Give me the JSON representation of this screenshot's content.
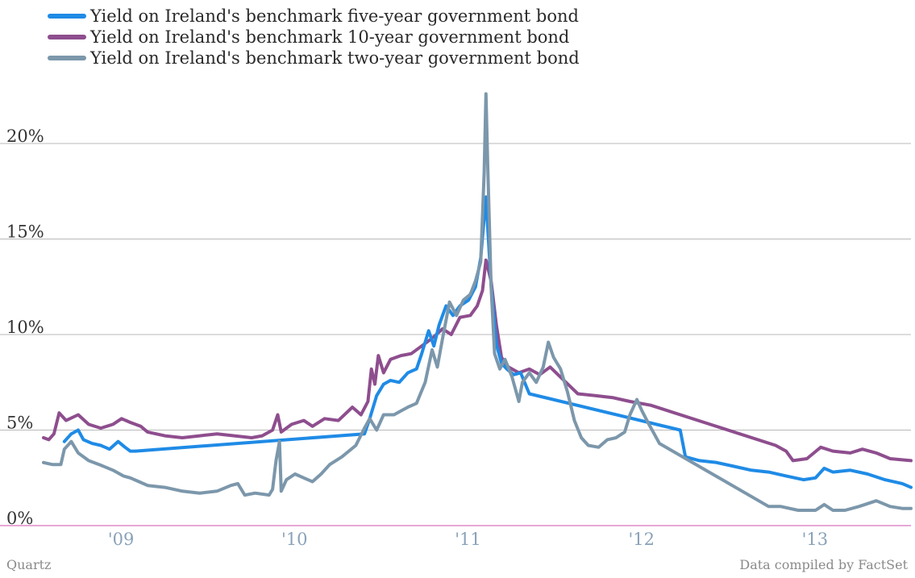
{
  "chart_data": {
    "type": "line",
    "y_unit": "%",
    "ylim": [
      0,
      23
    ],
    "xlim": [
      2008.5,
      2013.5
    ],
    "yticks": [
      {
        "value": 0,
        "label": "0%"
      },
      {
        "value": 5,
        "label": "5%"
      },
      {
        "value": 10,
        "label": "10%"
      },
      {
        "value": 15,
        "label": "15%"
      },
      {
        "value": 20,
        "label": "20%"
      }
    ],
    "xticks": [
      {
        "value": 2009,
        "label": "'09"
      },
      {
        "value": 2010,
        "label": "'10"
      },
      {
        "value": 2011,
        "label": "'11"
      },
      {
        "value": 2012,
        "label": "'12"
      },
      {
        "value": 2013,
        "label": "'13"
      }
    ],
    "grid": true,
    "legend_position": "top-left",
    "series": [
      {
        "name": "Yield on Ireland's benchmark five-year government bond",
        "color": "#1f8be6",
        "points": [
          [
            2008.62,
            4.4
          ],
          [
            2008.66,
            4.8
          ],
          [
            2008.7,
            5.0
          ],
          [
            2008.73,
            4.5
          ],
          [
            2008.78,
            4.3
          ],
          [
            2008.83,
            4.2
          ],
          [
            2008.88,
            4.0
          ],
          [
            2008.93,
            4.4
          ],
          [
            2008.97,
            4.1
          ],
          [
            2009.0,
            3.9
          ],
          [
            2009.03,
            3.9
          ],
          [
            2010.35,
            4.8
          ],
          [
            2010.38,
            5.6
          ],
          [
            2010.42,
            6.8
          ],
          [
            2010.46,
            7.4
          ],
          [
            2010.5,
            7.6
          ],
          [
            2010.55,
            7.5
          ],
          [
            2010.6,
            8.0
          ],
          [
            2010.65,
            8.2
          ],
          [
            2010.68,
            9.0
          ],
          [
            2010.72,
            10.2
          ],
          [
            2010.75,
            9.4
          ],
          [
            2010.78,
            10.5
          ],
          [
            2010.82,
            11.5
          ],
          [
            2010.86,
            11.0
          ],
          [
            2010.9,
            11.5
          ],
          [
            2010.95,
            11.8
          ],
          [
            2010.99,
            12.5
          ],
          [
            2011.02,
            14.0
          ],
          [
            2011.05,
            17.2
          ],
          [
            2011.08,
            12.6
          ],
          [
            2011.11,
            9.5
          ],
          [
            2011.14,
            8.5
          ],
          [
            2011.17,
            8.2
          ],
          [
            2011.21,
            7.9
          ],
          [
            2011.25,
            8.0
          ],
          [
            2011.3,
            6.9
          ],
          [
            2012.17,
            5.0
          ],
          [
            2012.2,
            3.6
          ],
          [
            2012.28,
            3.4
          ],
          [
            2012.38,
            3.3
          ],
          [
            2012.48,
            3.1
          ],
          [
            2012.58,
            2.9
          ],
          [
            2012.68,
            2.8
          ],
          [
            2012.78,
            2.6
          ],
          [
            2012.88,
            2.4
          ],
          [
            2012.95,
            2.5
          ],
          [
            2013.0,
            3.0
          ],
          [
            2013.05,
            2.8
          ],
          [
            2013.15,
            2.9
          ],
          [
            2013.25,
            2.7
          ],
          [
            2013.35,
            2.4
          ],
          [
            2013.45,
            2.2
          ],
          [
            2013.5,
            2.0
          ]
        ]
      },
      {
        "name": "Yield on Ireland's benchmark 10-year government bond",
        "color": "#8e4e8e",
        "points": [
          [
            2008.5,
            4.6
          ],
          [
            2008.53,
            4.5
          ],
          [
            2008.56,
            4.8
          ],
          [
            2008.59,
            5.9
          ],
          [
            2008.63,
            5.5
          ],
          [
            2008.7,
            5.8
          ],
          [
            2008.76,
            5.3
          ],
          [
            2008.83,
            5.1
          ],
          [
            2008.9,
            5.3
          ],
          [
            2008.95,
            5.6
          ],
          [
            2009.0,
            5.4
          ],
          [
            2009.06,
            5.2
          ],
          [
            2009.1,
            4.9
          ],
          [
            2009.2,
            4.7
          ],
          [
            2009.3,
            4.6
          ],
          [
            2009.4,
            4.7
          ],
          [
            2009.5,
            4.8
          ],
          [
            2009.6,
            4.7
          ],
          [
            2009.7,
            4.6
          ],
          [
            2009.76,
            4.7
          ],
          [
            2009.82,
            5.0
          ],
          [
            2009.85,
            5.8
          ],
          [
            2009.87,
            4.9
          ],
          [
            2009.93,
            5.3
          ],
          [
            2010.0,
            5.5
          ],
          [
            2010.05,
            5.2
          ],
          [
            2010.12,
            5.6
          ],
          [
            2010.2,
            5.5
          ],
          [
            2010.28,
            6.2
          ],
          [
            2010.33,
            5.8
          ],
          [
            2010.37,
            6.5
          ],
          [
            2010.39,
            8.2
          ],
          [
            2010.41,
            7.4
          ],
          [
            2010.43,
            8.9
          ],
          [
            2010.46,
            8.0
          ],
          [
            2010.5,
            8.7
          ],
          [
            2010.56,
            8.9
          ],
          [
            2010.62,
            9.0
          ],
          [
            2010.68,
            9.4
          ],
          [
            2010.74,
            9.8
          ],
          [
            2010.8,
            10.3
          ],
          [
            2010.85,
            10.0
          ],
          [
            2010.9,
            10.9
          ],
          [
            2010.96,
            11.0
          ],
          [
            2011.0,
            11.5
          ],
          [
            2011.03,
            12.3
          ],
          [
            2011.05,
            13.9
          ],
          [
            2011.08,
            12.8
          ],
          [
            2011.11,
            10.5
          ],
          [
            2011.14,
            8.8
          ],
          [
            2011.18,
            8.3
          ],
          [
            2011.24,
            8.0
          ],
          [
            2011.3,
            8.2
          ],
          [
            2011.36,
            7.9
          ],
          [
            2011.42,
            8.3
          ],
          [
            2011.5,
            7.6
          ],
          [
            2011.58,
            6.9
          ],
          [
            2011.68,
            6.8
          ],
          [
            2011.78,
            6.7
          ],
          [
            2011.88,
            6.5
          ],
          [
            2012.0,
            6.3
          ],
          [
            2012.72,
            4.2
          ],
          [
            2012.78,
            3.9
          ],
          [
            2012.82,
            3.4
          ],
          [
            2012.9,
            3.5
          ],
          [
            2012.98,
            4.1
          ],
          [
            2013.05,
            3.9
          ],
          [
            2013.15,
            3.8
          ],
          [
            2013.22,
            4.0
          ],
          [
            2013.3,
            3.8
          ],
          [
            2013.38,
            3.5
          ],
          [
            2013.5,
            3.4
          ]
        ]
      },
      {
        "name": "Yield on Ireland's benchmark two-year government bond",
        "color": "#7c97ab",
        "points": [
          [
            2008.5,
            3.3
          ],
          [
            2008.55,
            3.2
          ],
          [
            2008.6,
            3.2
          ],
          [
            2008.62,
            4.0
          ],
          [
            2008.66,
            4.4
          ],
          [
            2008.7,
            3.8
          ],
          [
            2008.76,
            3.4
          ],
          [
            2008.82,
            3.2
          ],
          [
            2008.9,
            2.9
          ],
          [
            2008.96,
            2.6
          ],
          [
            2009.0,
            2.5
          ],
          [
            2009.05,
            2.3
          ],
          [
            2009.1,
            2.1
          ],
          [
            2009.2,
            2.0
          ],
          [
            2009.3,
            1.8
          ],
          [
            2009.4,
            1.7
          ],
          [
            2009.5,
            1.8
          ],
          [
            2009.58,
            2.1
          ],
          [
            2009.62,
            2.2
          ],
          [
            2009.66,
            1.6
          ],
          [
            2009.72,
            1.7
          ],
          [
            2009.8,
            1.6
          ],
          [
            2009.82,
            1.9
          ],
          [
            2009.84,
            3.4
          ],
          [
            2009.86,
            4.4
          ],
          [
            2009.87,
            1.8
          ],
          [
            2009.9,
            2.4
          ],
          [
            2009.95,
            2.7
          ],
          [
            2010.0,
            2.5
          ],
          [
            2010.05,
            2.3
          ],
          [
            2010.1,
            2.7
          ],
          [
            2010.15,
            3.2
          ],
          [
            2010.22,
            3.6
          ],
          [
            2010.3,
            4.2
          ],
          [
            2010.35,
            5.1
          ],
          [
            2010.38,
            5.6
          ],
          [
            2010.42,
            5.0
          ],
          [
            2010.46,
            5.8
          ],
          [
            2010.52,
            5.8
          ],
          [
            2010.56,
            6.0
          ],
          [
            2010.6,
            6.2
          ],
          [
            2010.65,
            6.4
          ],
          [
            2010.7,
            7.5
          ],
          [
            2010.74,
            9.2
          ],
          [
            2010.77,
            8.3
          ],
          [
            2010.8,
            9.8
          ],
          [
            2010.84,
            11.7
          ],
          [
            2010.88,
            11.0
          ],
          [
            2010.92,
            11.8
          ],
          [
            2010.96,
            12.1
          ],
          [
            2010.99,
            12.8
          ],
          [
            2011.02,
            13.8
          ],
          [
            2011.04,
            18.5
          ],
          [
            2011.05,
            22.6
          ],
          [
            2011.06,
            19.0
          ],
          [
            2011.08,
            12.5
          ],
          [
            2011.1,
            9.0
          ],
          [
            2011.13,
            8.2
          ],
          [
            2011.16,
            8.7
          ],
          [
            2011.2,
            7.8
          ],
          [
            2011.24,
            6.5
          ],
          [
            2011.26,
            7.5
          ],
          [
            2011.3,
            8.0
          ],
          [
            2011.34,
            7.5
          ],
          [
            2011.38,
            8.3
          ],
          [
            2011.41,
            9.6
          ],
          [
            2011.44,
            8.8
          ],
          [
            2011.48,
            8.2
          ],
          [
            2011.52,
            7.0
          ],
          [
            2011.56,
            5.5
          ],
          [
            2011.6,
            4.6
          ],
          [
            2011.64,
            4.2
          ],
          [
            2011.7,
            4.1
          ],
          [
            2011.75,
            4.5
          ],
          [
            2011.8,
            4.6
          ],
          [
            2011.85,
            4.9
          ],
          [
            2011.88,
            5.8
          ],
          [
            2011.92,
            6.6
          ],
          [
            2011.95,
            6.0
          ],
          [
            2011.99,
            5.3
          ],
          [
            2012.02,
            4.8
          ],
          [
            2012.05,
            4.3
          ],
          [
            2012.68,
            1.0
          ],
          [
            2012.75,
            1.0
          ],
          [
            2012.85,
            0.8
          ],
          [
            2012.95,
            0.8
          ],
          [
            2013.0,
            1.1
          ],
          [
            2013.05,
            0.8
          ],
          [
            2013.12,
            0.8
          ],
          [
            2013.2,
            1.0
          ],
          [
            2013.3,
            1.3
          ],
          [
            2013.38,
            1.0
          ],
          [
            2013.45,
            0.9
          ],
          [
            2013.5,
            0.9
          ]
        ]
      }
    ]
  },
  "footer": {
    "source_left": "Quartz",
    "source_right": "Data compiled by FactSet"
  }
}
